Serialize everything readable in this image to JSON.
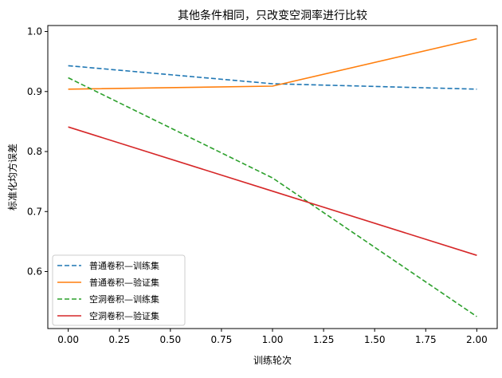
{
  "chart_data": {
    "type": "line",
    "title": "其他条件相同，只改变空洞率进行比较",
    "xlabel": "训练轮次",
    "ylabel": "标准化均方误差",
    "xlim": [
      -0.1,
      2.1
    ],
    "ylim": [
      0.505,
      1.01
    ],
    "xticks": [
      0.0,
      0.25,
      0.5,
      0.75,
      1.0,
      1.25,
      1.5,
      1.75,
      2.0
    ],
    "xtick_labels": [
      "0.00",
      "0.25",
      "0.50",
      "0.75",
      "1.00",
      "1.25",
      "1.50",
      "1.75",
      "2.00"
    ],
    "yticks": [
      0.6,
      0.7,
      0.8,
      0.9,
      1.0
    ],
    "ytick_labels": [
      "0.6",
      "0.7",
      "0.8",
      "0.9",
      "1.0"
    ],
    "x": [
      0,
      1,
      2
    ],
    "grid": false,
    "legend_position": "lower-left",
    "series": [
      {
        "name": "普通卷积—训练集",
        "values": [
          0.943,
          0.913,
          0.904
        ],
        "color": "#1f77b4",
        "dash": "dashed"
      },
      {
        "name": "普通卷积—验证集",
        "values": [
          0.904,
          0.909,
          0.988
        ],
        "color": "#ff7f0e",
        "dash": "solid"
      },
      {
        "name": "空洞卷积—训练集",
        "values": [
          0.923,
          0.756,
          0.525
        ],
        "color": "#2ca02c",
        "dash": "dashed"
      },
      {
        "name": "空洞卷积—验证集",
        "values": [
          0.841,
          0.734,
          0.627
        ],
        "color": "#d62728",
        "dash": "solid"
      }
    ]
  }
}
